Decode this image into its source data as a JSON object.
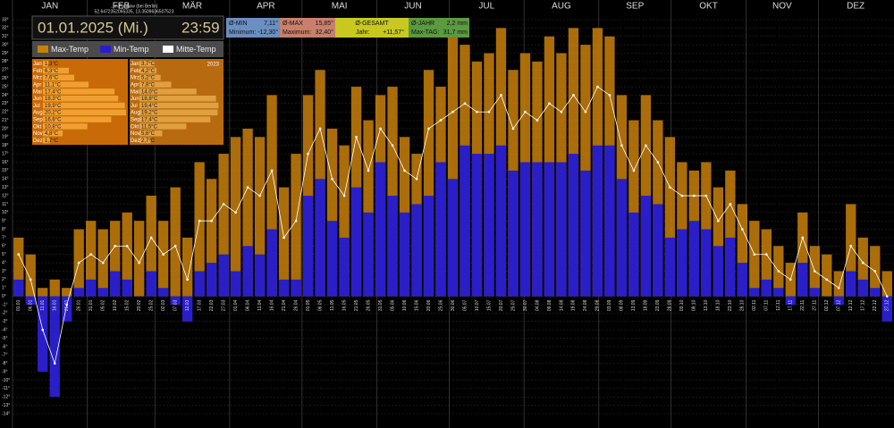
{
  "chart_data": {
    "type": "bar",
    "months": [
      "JAN",
      "FEB",
      "MÄR",
      "APR",
      "MAI",
      "JUN",
      "JUL",
      "AUG",
      "SEP",
      "OKT",
      "NOV",
      "DEZ"
    ],
    "x": [
      "01.01",
      "06.01",
      "11.01",
      "16.01",
      "21.01",
      "26.01",
      "31.01",
      "05.02",
      "10.02",
      "15.02",
      "20.02",
      "25.02",
      "02.03",
      "07.03",
      "12.03",
      "17.03",
      "22.03",
      "27.03",
      "01.04",
      "06.04",
      "11.04",
      "16.04",
      "21.04",
      "26.04",
      "01.05",
      "06.05",
      "11.05",
      "16.05",
      "21.05",
      "26.05",
      "31.05",
      "05.06",
      "10.06",
      "15.06",
      "20.06",
      "25.06",
      "30.06",
      "05.07",
      "10.07",
      "15.07",
      "20.07",
      "25.07",
      "30.07",
      "04.08",
      "09.08",
      "14.08",
      "19.08",
      "24.08",
      "29.08",
      "03.09",
      "08.09",
      "13.09",
      "18.09",
      "23.09",
      "28.09",
      "03.10",
      "08.10",
      "13.10",
      "18.10",
      "23.10",
      "28.10",
      "02.11",
      "07.11",
      "12.11",
      "17.11",
      "22.11",
      "27.11",
      "02.12",
      "07.12",
      "12.12",
      "17.12",
      "22.12",
      "27.12"
    ],
    "series": [
      {
        "name": "Max-Temp",
        "color": "#c8800a",
        "values": [
          7,
          5,
          1,
          2,
          1,
          8,
          9,
          8,
          9,
          10,
          9,
          12,
          9,
          13,
          7,
          16,
          14,
          17,
          19,
          20,
          19,
          24,
          13,
          17,
          24,
          27,
          20,
          18,
          25,
          21,
          24,
          25,
          19,
          17,
          27,
          25,
          31,
          30,
          28,
          29,
          32,
          27,
          29,
          28,
          31,
          29,
          32,
          30,
          32,
          31,
          24,
          21,
          24,
          21,
          19,
          16,
          15,
          16,
          13,
          15,
          11,
          9,
          8,
          6,
          4,
          10,
          6,
          5,
          3,
          11,
          7,
          6,
          3
        ]
      },
      {
        "name": "Min-Temp",
        "color": "#2a1ec8",
        "values": [
          2,
          -1,
          -9,
          -12,
          -3,
          1,
          2,
          1,
          3,
          2,
          0,
          3,
          1,
          -1,
          -3,
          3,
          4,
          5,
          3,
          6,
          5,
          8,
          2,
          2,
          12,
          14,
          9,
          7,
          13,
          10,
          16,
          12,
          10,
          11,
          12,
          16,
          14,
          18,
          17,
          17,
          18,
          15,
          16,
          16,
          16,
          16,
          17,
          15,
          18,
          18,
          14,
          10,
          12,
          11,
          7,
          8,
          9,
          8,
          6,
          7,
          4,
          1,
          2,
          1,
          -1,
          4,
          1,
          0,
          -1,
          3,
          2,
          1,
          -3
        ]
      },
      {
        "name": "Mitte-Temp",
        "color": "#ffffff",
        "values": [
          5,
          2,
          -4,
          -8,
          -1,
          4,
          5,
          4,
          6,
          6,
          4,
          7,
          5,
          6,
          2,
          9,
          9,
          11,
          10,
          13,
          12,
          15,
          7,
          9,
          17,
          20,
          14,
          12,
          19,
          15,
          20,
          18,
          15,
          14,
          20,
          21,
          22,
          23,
          22,
          22,
          24,
          20,
          22,
          21,
          23,
          22,
          24,
          22,
          25,
          24,
          18,
          15,
          18,
          16,
          13,
          12,
          12,
          12,
          9,
          11,
          8,
          5,
          5,
          3,
          2,
          7,
          3,
          2,
          1,
          6,
          4,
          3,
          0
        ]
      }
    ],
    "ylim": [
      -14,
      33
    ],
    "yticks": [
      {
        "value": -14,
        "label": "-14°"
      },
      {
        "value": -13,
        "label": "-13°"
      },
      {
        "value": -12,
        "label": "-12°"
      },
      {
        "value": -11,
        "label": "-11°"
      },
      {
        "value": -10,
        "label": "-10°"
      },
      {
        "value": -9,
        "label": "-9°"
      },
      {
        "value": -8,
        "label": "-8°"
      },
      {
        "value": -7,
        "label": "-7°"
      },
      {
        "value": -6,
        "label": "-6°"
      },
      {
        "value": -5,
        "label": "-5°"
      },
      {
        "value": -4,
        "label": "-4°"
      },
      {
        "value": -3,
        "label": "-3°"
      },
      {
        "value": -2,
        "label": "-2°"
      },
      {
        "value": -1,
        "label": "-1°"
      },
      {
        "value": 0,
        "label": "0°"
      },
      {
        "value": 1,
        "label": "1°"
      },
      {
        "value": 2,
        "label": "2°"
      },
      {
        "value": 3,
        "label": "3°"
      },
      {
        "value": 4,
        "label": "4°"
      },
      {
        "value": 5,
        "label": "5°"
      },
      {
        "value": 6,
        "label": "6°"
      },
      {
        "value": 7,
        "label": "7°"
      },
      {
        "value": 8,
        "label": "8°"
      },
      {
        "value": 9,
        "label": "9°"
      },
      {
        "value": 10,
        "label": "10°"
      },
      {
        "value": 11,
        "label": "11°"
      },
      {
        "value": 12,
        "label": "12°"
      },
      {
        "value": 13,
        "label": "13°"
      },
      {
        "value": 14,
        "label": "14°"
      },
      {
        "value": 15,
        "label": "15°"
      },
      {
        "value": 16,
        "label": "16°"
      },
      {
        "value": 17,
        "label": "17°"
      },
      {
        "value": 18,
        "label": "18°"
      },
      {
        "value": 19,
        "label": "19°"
      },
      {
        "value": 20,
        "label": "20°"
      },
      {
        "value": 21,
        "label": "21°"
      },
      {
        "value": 22,
        "label": "22°"
      },
      {
        "value": 23,
        "label": "23°"
      },
      {
        "value": 24,
        "label": "24°"
      },
      {
        "value": 25,
        "label": "25°"
      },
      {
        "value": 26,
        "label": "26°"
      },
      {
        "value": 27,
        "label": "27°"
      },
      {
        "value": 28,
        "label": "28°"
      },
      {
        "value": 29,
        "label": "29°"
      },
      {
        "value": 30,
        "label": "30°"
      },
      {
        "value": 31,
        "label": "31°"
      },
      {
        "value": 32,
        "label": "32°"
      },
      {
        "value": 33,
        "label": "33°"
      }
    ],
    "grid": true
  },
  "header": {
    "location": "...in Pankow (bei Berlin)",
    "coordinates": "52.6472352065335, 13.3509636507523",
    "date": "01.01.2025 (Mi.)",
    "time": "23:59"
  },
  "stats": {
    "min_avg_label": "Ø-MIN",
    "min_avg": "7,11°",
    "min_label": "Minimum:",
    "min": "-12,30°",
    "max_avg_label": "Ø-MAX",
    "max_avg": "15,85°",
    "max_label": "Maximum:",
    "max": "32,40°",
    "total_label": "Ø-GESAMT",
    "year_label": "Jahr:",
    "year": "+11,57°",
    "rain_label": "Ø-JAHR",
    "rain": "2,2 mm",
    "rain_max_label": "Max-TAG:",
    "rain_max": "31,7 mm"
  },
  "monthly": {
    "months": [
      "Jan",
      "Feb",
      "Mrz",
      "Apr",
      "Mai",
      "Jun",
      "Jul",
      "Aug",
      "Sep",
      "Okt",
      "Nov",
      "Dez"
    ],
    "values": [
      1.3,
      6.3,
      7.6,
      11.1,
      17.4,
      18.3,
      19.9,
      20.2,
      16.6,
      10.8,
      4.8,
      1.7
    ],
    "value_labels": [
      "1,3°C",
      "6,3°C",
      "7,6°C",
      "11,1°C",
      "17,4°C",
      "18,3°C",
      "19,9°C",
      "20,2°C",
      "16,6°C",
      "10,8°C",
      "4,8°C",
      "1,7°C"
    ],
    "compare_year": "2023",
    "compare_values": [
      3.7,
      4.2,
      5.2,
      7.8,
      14.0,
      18.8,
      19.4,
      19.2,
      17.4,
      11.5,
      5.6,
      2.7
    ],
    "compare_labels": [
      "3,7°C",
      "4,2°C",
      "5,2°C",
      "7,8°C",
      "14,0°C",
      "18,8°C",
      "19,4°C",
      "19,2°C",
      "17,4°C",
      "11,5°C",
      "5,6°C",
      "2,7°C"
    ]
  }
}
